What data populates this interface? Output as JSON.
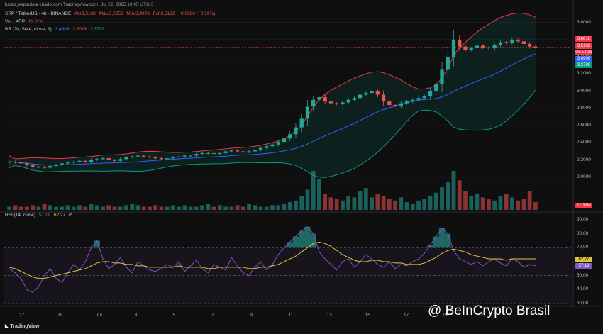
{
  "attribution": "lucas_espindola criado com TradingView.com, Jul 22, 2025 10:05 UTC-3",
  "legend": {
    "symbol": "XRP / TetherUS · 4h · BINANCE",
    "open": "Abr3,5198",
    "high": "Máx.3,5250",
    "low": "Mín.3,4978",
    "close": "Fch3,5132",
    "change": "−0,0066 (−0,19%)",
    "vol_label": "Vol · XRP",
    "vol_value": "11,32M",
    "bb_label": "BB (20, SMA, close, 2)",
    "bb_mid": "3,4908",
    "bb_upper": "3,6018",
    "bb_lower": "3,3799",
    "rsi_label": "RSI (14, close)",
    "rsi_value": "57,19",
    "rsi_ma": "62,27",
    "rsi_extra": "Ø"
  },
  "price_badges": {
    "upper": "3,6018",
    "last": "3,5132",
    "countdown": "03:54:31",
    "mid": "3,4908",
    "lower": "3,3799",
    "volume": "11,32M"
  },
  "rsi_badges": {
    "ma": "62,27",
    "rsi": "57,19"
  },
  "colors": {
    "up": "#26a69a",
    "down": "#ef5350",
    "bb_mid": "#2962ff",
    "bb_upper": "#f23645",
    "bb_lower": "#089981",
    "rsi": "#7e57c2",
    "rsi_ma": "#e0c440"
  },
  "branding": {
    "watermark": "@ BeInCrypto Brasil",
    "tv": "TradingView"
  },
  "chart_data": [
    {
      "type": "candlestick",
      "title": "XRP / TetherUS · 4h · BINANCE",
      "y_axis_labels": [
        "3,8000",
        "3,6000",
        "3,4000",
        "3,2000",
        "3,0000",
        "2,8000",
        "2,6000",
        "2,4000",
        "2,2000",
        "2,0000"
      ],
      "ylim": [
        1.85,
        3.88
      ],
      "x_axis_labels": [
        "27",
        "29",
        "Jul",
        "3",
        "5",
        "7",
        "9",
        "11",
        "13",
        "15",
        "17",
        "19",
        "21"
      ],
      "close_series": [
        2.18,
        2.17,
        2.16,
        2.14,
        2.12,
        2.12,
        2.11,
        2.13,
        2.14,
        2.16,
        2.17,
        2.18,
        2.19,
        2.18,
        2.2,
        2.21,
        2.22,
        2.2,
        2.19,
        2.21,
        2.23,
        2.24,
        2.25,
        2.24,
        2.23,
        2.22,
        2.21,
        2.22,
        2.23,
        2.24,
        2.25,
        2.25,
        2.27,
        2.28,
        2.28,
        2.27,
        2.28,
        2.3,
        2.31,
        2.3,
        2.29,
        2.3,
        2.32,
        2.34,
        2.36,
        2.38,
        2.41,
        2.45,
        2.5,
        2.58,
        2.68,
        2.82,
        2.9,
        2.93,
        2.88,
        2.86,
        2.85,
        2.87,
        2.9,
        2.92,
        2.96,
        2.98,
        3.0,
        2.96,
        2.88,
        2.84,
        2.83,
        2.86,
        2.88,
        2.9,
        2.92,
        2.94,
        3.0,
        3.08,
        3.25,
        3.4,
        3.6,
        3.52,
        3.48,
        3.5,
        3.53,
        3.51,
        3.5,
        3.54,
        3.57,
        3.56,
        3.6,
        3.58,
        3.55,
        3.52,
        3.51
      ],
      "volume_bars": [
        2,
        3,
        2,
        2,
        3,
        2,
        4,
        3,
        2,
        2,
        3,
        2,
        3,
        2,
        4,
        3,
        2,
        3,
        2,
        2,
        3,
        4,
        3,
        2,
        2,
        3,
        2,
        2,
        3,
        2,
        3,
        2,
        2,
        3,
        4,
        2,
        3,
        2,
        2,
        3,
        2,
        4,
        3,
        2,
        2,
        3,
        3,
        4,
        5,
        6,
        9,
        13,
        25,
        20,
        10,
        8,
        7,
        6,
        9,
        8,
        12,
        14,
        8,
        10,
        9,
        7,
        6,
        8,
        5,
        4,
        6,
        7,
        9,
        11,
        15,
        18,
        25,
        19,
        12,
        9,
        10,
        8,
        7,
        6,
        9,
        10,
        8,
        6,
        7,
        12,
        5
      ]
    },
    {
      "type": "line",
      "title": "RSI (14, close)",
      "y_axis_labels": [
        "90,00",
        "80,00",
        "70,00",
        "60,00",
        "50,00",
        "40,00",
        "30,00"
      ],
      "ylim": [
        30,
        92
      ],
      "bands": [
        70,
        50,
        30
      ],
      "series": [
        {
          "name": "RSI",
          "values": [
            55,
            52,
            48,
            40,
            38,
            42,
            50,
            55,
            48,
            45,
            52,
            58,
            54,
            60,
            70,
            75,
            62,
            55,
            58,
            63,
            56,
            52,
            60,
            57,
            54,
            53,
            55,
            58,
            56,
            60,
            53,
            57,
            61,
            55,
            52,
            58,
            56,
            54,
            63,
            57,
            52,
            50,
            56,
            60,
            54,
            58,
            65,
            70,
            74,
            78,
            82,
            85,
            80,
            67,
            62,
            58,
            54,
            60,
            62,
            56,
            60,
            65,
            62,
            58,
            56,
            60,
            55,
            58,
            57,
            60,
            62,
            66,
            72,
            78,
            84,
            80,
            68,
            62,
            60,
            58,
            60,
            57,
            60,
            62,
            59,
            57,
            62,
            60,
            56,
            58,
            57
          ]
        },
        {
          "name": "MA",
          "values": [
            56,
            55,
            53,
            51,
            49,
            48,
            48,
            49,
            50,
            51,
            52,
            53,
            54,
            55,
            57,
            59,
            60,
            60,
            59,
            59,
            58,
            58,
            57,
            57,
            56,
            56,
            56,
            56,
            56,
            57,
            56,
            56,
            56,
            56,
            55,
            55,
            56,
            56,
            56,
            56,
            56,
            55,
            55,
            56,
            56,
            57,
            58,
            60,
            62,
            64,
            67,
            70,
            73,
            74,
            73,
            71,
            68,
            65,
            63,
            61,
            60,
            60,
            61,
            61,
            60,
            60,
            59,
            59,
            58,
            58,
            58,
            59,
            61,
            63,
            66,
            68,
            69,
            68,
            67,
            65,
            64,
            63,
            62,
            62,
            62,
            61,
            62,
            62,
            62,
            62,
            62
          ]
        }
      ]
    }
  ]
}
